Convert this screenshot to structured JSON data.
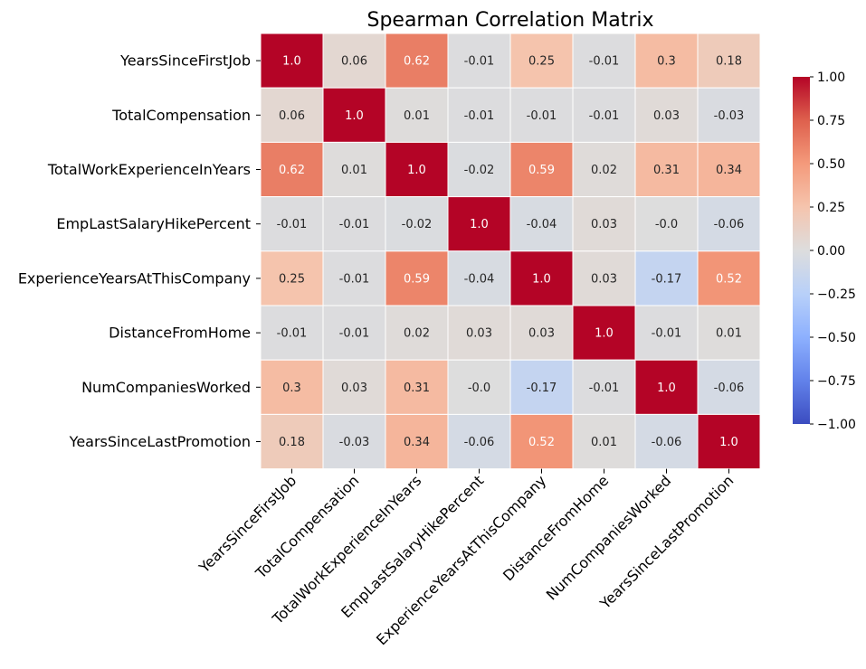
{
  "chart_data": {
    "type": "heatmap",
    "title": "Spearman Correlation Matrix",
    "xlabel": "",
    "ylabel": "",
    "colormap": "coolwarm",
    "vmin": -1.0,
    "vmax": 1.0,
    "colorbar": {
      "ticks": [
        1.0,
        0.75,
        0.5,
        0.25,
        0.0,
        -0.25,
        -0.5,
        -0.75,
        -1.0
      ],
      "tick_labels": [
        "1.00",
        "0.75",
        "0.50",
        "0.25",
        "0.00",
        "−0.25",
        "−0.50",
        "−0.75",
        "−1.00"
      ],
      "placement": "right"
    },
    "row_labels": [
      "YearsSinceFirstJob",
      "TotalCompensation",
      "TotalWorkExperienceInYears",
      "EmpLastSalaryHikePercent",
      "ExperienceYearsAtThisCompany",
      "DistanceFromHome",
      "NumCompaniesWorked",
      "YearsSinceLastPromotion"
    ],
    "col_labels": [
      "YearsSinceFirstJob",
      "TotalCompensation",
      "TotalWorkExperienceInYears",
      "EmpLastSalaryHikePercent",
      "ExperienceYearsAtThisCompany",
      "DistanceFromHome",
      "NumCompaniesWorked",
      "YearsSinceLastPromotion"
    ],
    "values": [
      [
        1.0,
        0.06,
        0.62,
        -0.01,
        0.25,
        -0.01,
        0.3,
        0.18
      ],
      [
        0.06,
        1.0,
        0.01,
        -0.01,
        -0.01,
        -0.01,
        0.03,
        -0.03
      ],
      [
        0.62,
        0.01,
        1.0,
        -0.02,
        0.59,
        0.02,
        0.31,
        0.34
      ],
      [
        -0.01,
        -0.01,
        -0.02,
        1.0,
        -0.04,
        0.03,
        -0.0,
        -0.06
      ],
      [
        0.25,
        -0.01,
        0.59,
        -0.04,
        1.0,
        0.03,
        -0.17,
        0.52
      ],
      [
        -0.01,
        -0.01,
        0.02,
        0.03,
        0.03,
        1.0,
        -0.01,
        0.01
      ],
      [
        0.3,
        0.03,
        0.31,
        -0.0,
        -0.17,
        -0.01,
        1.0,
        -0.06
      ],
      [
        0.18,
        -0.03,
        0.34,
        -0.06,
        0.52,
        0.01,
        -0.06,
        1.0
      ]
    ],
    "cell_labels": [
      [
        "1.0",
        "0.06",
        "0.62",
        "-0.01",
        "0.25",
        "-0.01",
        "0.3",
        "0.18"
      ],
      [
        "0.06",
        "1.0",
        "0.01",
        "-0.01",
        "-0.01",
        "-0.01",
        "0.03",
        "-0.03"
      ],
      [
        "0.62",
        "0.01",
        "1.0",
        "-0.02",
        "0.59",
        "0.02",
        "0.31",
        "0.34"
      ],
      [
        "-0.01",
        "-0.01",
        "-0.02",
        "1.0",
        "-0.04",
        "0.03",
        "-0.0",
        "-0.06"
      ],
      [
        "0.25",
        "-0.01",
        "0.59",
        "-0.04",
        "1.0",
        "0.03",
        "-0.17",
        "0.52"
      ],
      [
        "-0.01",
        "-0.01",
        "0.02",
        "0.03",
        "0.03",
        "1.0",
        "-0.01",
        "0.01"
      ],
      [
        "0.3",
        "0.03",
        "0.31",
        "-0.0",
        "-0.17",
        "-0.01",
        "1.0",
        "-0.06"
      ],
      [
        "0.18",
        "-0.03",
        "0.34",
        "-0.06",
        "0.52",
        "0.01",
        "-0.06",
        "1.0"
      ]
    ]
  }
}
